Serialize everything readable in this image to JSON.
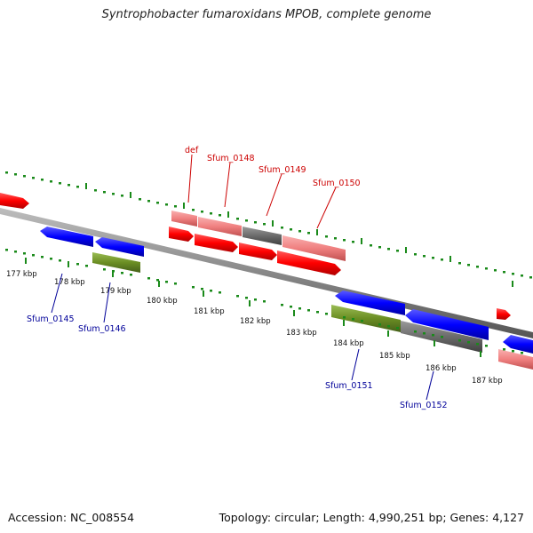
{
  "title": "Syntrophobacter fumaroxidans MPOB, complete genome",
  "footer": {
    "accession": "Accession: NC_008554",
    "summary": "Topology: circular; Length: 4,990,251 bp; Genes: 4,127"
  },
  "colors": {
    "cds": "#ff0000",
    "trna": "#f08080",
    "other_gene": "#6b6b6b",
    "forward_label": "#cc0000",
    "reverse_label": "#000099",
    "reverse_cds": "#0000ff",
    "reverse_misc": "#6b8e23",
    "backbone": "#888888",
    "scale": "#1a8a1a"
  },
  "scale_labels": [
    "177 kbp",
    "178 kbp",
    "179 kbp",
    "180 kbp",
    "181 kbp",
    "182 kbp",
    "183 kbp",
    "184 kbp",
    "185 kbp",
    "186 kbp",
    "187 kbp"
  ],
  "gene_labels": {
    "forward": [
      "def",
      "Sfum_0148",
      "Sfum_0149",
      "Sfum_0150"
    ],
    "reverse": [
      "Sfum_0145",
      "Sfum_0146",
      "Sfum_0151",
      "Sfum_0152"
    ]
  }
}
